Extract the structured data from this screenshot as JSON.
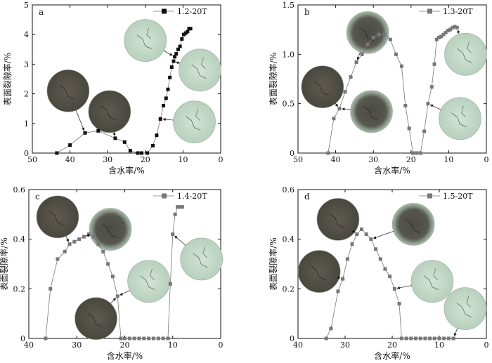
{
  "chart_data": [
    {
      "type": "scatter",
      "panel_label": "a",
      "legend": "1.2-20T",
      "xlabel": "含水率/%",
      "ylabel": "表面裂隙率/%",
      "xlim": [
        50,
        0
      ],
      "ylim": [
        0,
        5
      ],
      "xticks": [
        50,
        40,
        30,
        20,
        10,
        0
      ],
      "yticks": [
        0,
        1,
        2,
        3,
        4,
        5
      ],
      "marker_color": "#111111",
      "points": [
        [
          43.5,
          0
        ],
        [
          40,
          0.27
        ],
        [
          36,
          0.68
        ],
        [
          32.5,
          0.75
        ],
        [
          28,
          0.5
        ],
        [
          25.5,
          0.37
        ],
        [
          24,
          0.08
        ],
        [
          22,
          0
        ],
        [
          21,
          0
        ],
        [
          19.5,
          0
        ],
        [
          18,
          0.25
        ],
        [
          17,
          0.6
        ],
        [
          16,
          1.15
        ],
        [
          15.2,
          1.6
        ],
        [
          14.5,
          1.85
        ],
        [
          14,
          2.15
        ],
        [
          13.5,
          2.55
        ],
        [
          13,
          2.9
        ],
        [
          12.5,
          3.1
        ],
        [
          12.2,
          3.25
        ],
        [
          11.8,
          3.35
        ],
        [
          11.3,
          3.5
        ],
        [
          10.8,
          3.6
        ],
        [
          10.3,
          3.85
        ],
        [
          9.8,
          4.0
        ],
        [
          9.3,
          4.05
        ],
        [
          8.8,
          4.1
        ],
        [
          8.4,
          4.2
        ],
        [
          8.0,
          4.2
        ]
      ],
      "thumbnails": [
        {
          "x": 40.5,
          "y": 2.1,
          "style": "dark"
        },
        {
          "x": 29.5,
          "y": 1.4,
          "style": "dark"
        },
        {
          "x": 20,
          "y": 3.8,
          "style": "light"
        },
        {
          "x": 5.5,
          "y": 2.8,
          "style": "light"
        },
        {
          "x": 7,
          "y": 1.05,
          "style": "light"
        }
      ]
    },
    {
      "type": "scatter",
      "panel_label": "b",
      "legend": "1.3-20T",
      "xlabel": "含水率/%",
      "ylabel": "表面裂隙率/%",
      "xlim": [
        50,
        0
      ],
      "ylim": [
        0,
        1.5
      ],
      "xticks": [
        50,
        40,
        30,
        20,
        10,
        0
      ],
      "yticks": [
        0,
        0.5,
        1.0,
        1.5
      ],
      "ytick_labels": [
        "0",
        "0.5",
        "1.0",
        "1.5"
      ],
      "marker_color": "#777777",
      "points": [
        [
          42,
          0
        ],
        [
          40.5,
          0.35
        ],
        [
          39,
          0.45
        ],
        [
          37.5,
          0.62
        ],
        [
          36,
          0.77
        ],
        [
          34.5,
          0.92
        ],
        [
          33,
          1.0
        ],
        [
          31.5,
          1.1
        ],
        [
          30,
          1.17
        ],
        [
          28.5,
          1.2
        ],
        [
          27,
          1.2
        ],
        [
          25.5,
          1.15
        ],
        [
          24,
          1.0
        ],
        [
          22.5,
          0.88
        ],
        [
          21.5,
          0.48
        ],
        [
          20.5,
          0.25
        ],
        [
          19.5,
          0
        ],
        [
          18.5,
          0
        ],
        [
          17.5,
          0
        ],
        [
          16.5,
          0.22
        ],
        [
          15.5,
          0.5
        ],
        [
          14.5,
          0.67
        ],
        [
          13.8,
          0.9
        ],
        [
          13.2,
          1.15
        ],
        [
          12.6,
          1.17
        ],
        [
          12,
          1.18
        ],
        [
          11.4,
          1.2
        ],
        [
          10.8,
          1.22
        ],
        [
          10.2,
          1.24
        ],
        [
          9.6,
          1.25
        ],
        [
          9,
          1.27
        ],
        [
          8.4,
          1.28
        ],
        [
          7.8,
          1.27
        ]
      ],
      "thumbnails": [
        {
          "x": 31.5,
          "y": 1.22,
          "style": "dark-ring"
        },
        {
          "x": 43.5,
          "y": 0.67,
          "style": "dark"
        },
        {
          "x": 30.5,
          "y": 0.42,
          "style": "dark-ring"
        },
        {
          "x": 5.5,
          "y": 1.0,
          "style": "light"
        },
        {
          "x": 7,
          "y": 0.35,
          "style": "light"
        }
      ]
    },
    {
      "type": "scatter",
      "panel_label": "c",
      "legend": "1.4-20T",
      "xlabel": "含水率/%",
      "ylabel": "表面裂隙率/%",
      "xlim": [
        40,
        0
      ],
      "ylim": [
        0,
        0.6
      ],
      "xticks": [
        40,
        30,
        20,
        10,
        0
      ],
      "yticks": [
        0,
        0.2,
        0.4,
        0.6
      ],
      "ytick_labels": [
        "0",
        "0.2",
        "0.4",
        "0.6"
      ],
      "marker_color": "#777777",
      "points": [
        [
          36.5,
          0
        ],
        [
          35.5,
          0.2
        ],
        [
          34,
          0.32
        ],
        [
          32.5,
          0.35
        ],
        [
          31.5,
          0.38
        ],
        [
          30.5,
          0.39
        ],
        [
          29.5,
          0.4
        ],
        [
          28.5,
          0.41
        ],
        [
          27.5,
          0.42
        ],
        [
          26.5,
          0.41
        ],
        [
          25.5,
          0.38
        ],
        [
          24.5,
          0.35
        ],
        [
          23.5,
          0.3
        ],
        [
          22.5,
          0.25
        ],
        [
          21.5,
          0.17
        ],
        [
          20.8,
          0
        ],
        [
          20,
          0
        ],
        [
          19,
          0
        ],
        [
          18,
          0
        ],
        [
          17,
          0
        ],
        [
          16,
          0
        ],
        [
          15,
          0
        ],
        [
          14,
          0
        ],
        [
          13,
          0
        ],
        [
          12,
          0
        ],
        [
          11,
          0
        ],
        [
          10.5,
          0.22
        ],
        [
          10,
          0.42
        ],
        [
          9.5,
          0.5
        ],
        [
          9,
          0.53
        ],
        [
          8.5,
          0.53
        ],
        [
          8,
          0.53
        ]
      ],
      "thumbnails": [
        {
          "x": 34,
          "y": 0.49,
          "style": "dark"
        },
        {
          "x": 26,
          "y": 0.08,
          "style": "dark"
        },
        {
          "x": 23,
          "y": 0.44,
          "style": "dark-ring"
        },
        {
          "x": 15,
          "y": 0.23,
          "style": "light"
        },
        {
          "x": 4,
          "y": 0.32,
          "style": "light"
        }
      ]
    },
    {
      "type": "scatter",
      "panel_label": "d",
      "legend": "1.5-20T",
      "xlabel": "含水率/%",
      "ylabel": "表面裂隙率/%",
      "xlim": [
        40,
        0
      ],
      "ylim": [
        0,
        0.6
      ],
      "xticks": [
        40,
        30,
        20,
        10,
        0
      ],
      "yticks": [
        0,
        0.2,
        0.4,
        0.6
      ],
      "ytick_labels": [
        "0",
        "0.2",
        "0.4",
        "0.6"
      ],
      "marker_color": "#777777",
      "points": [
        [
          34,
          0
        ],
        [
          33,
          0.04
        ],
        [
          31.5,
          0.19
        ],
        [
          30.5,
          0.24
        ],
        [
          29.5,
          0.32
        ],
        [
          28.5,
          0.38
        ],
        [
          27.5,
          0.42
        ],
        [
          26.5,
          0.44
        ],
        [
          25.5,
          0.42
        ],
        [
          24.5,
          0.4
        ],
        [
          23.5,
          0.36
        ],
        [
          22.5,
          0.32
        ],
        [
          21.5,
          0.28
        ],
        [
          20.5,
          0.25
        ],
        [
          19.5,
          0.2
        ],
        [
          18.5,
          0.14
        ],
        [
          18,
          0
        ],
        [
          17,
          0
        ],
        [
          16,
          0
        ],
        [
          15,
          0
        ],
        [
          14,
          0
        ],
        [
          13,
          0
        ],
        [
          12,
          0
        ],
        [
          11,
          0
        ],
        [
          10,
          0
        ],
        [
          9,
          0
        ],
        [
          8,
          0
        ],
        [
          7,
          0
        ]
      ],
      "thumbnails": [
        {
          "x": 31.5,
          "y": 0.48,
          "style": "dark"
        },
        {
          "x": 35.5,
          "y": 0.27,
          "style": "dark"
        },
        {
          "x": 15.5,
          "y": 0.46,
          "style": "dark-ring"
        },
        {
          "x": 11.5,
          "y": 0.23,
          "style": "light"
        },
        {
          "x": 4.5,
          "y": 0.12,
          "style": "light"
        }
      ]
    }
  ]
}
